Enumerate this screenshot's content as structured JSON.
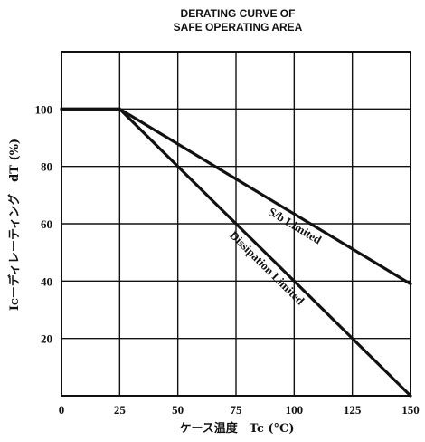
{
  "chart_data": {
    "type": "line",
    "title_lines": [
      "DERATING CURVE OF",
      "SAFE OPERATING AREA"
    ],
    "xlabel": "ケース温度　Tc (°C)",
    "ylabel": "Icーディレーティング　dT (%)",
    "xlim": [
      0,
      150
    ],
    "ylim": [
      0,
      120
    ],
    "x_ticks": [
      0,
      25,
      50,
      75,
      100,
      125,
      150
    ],
    "x_tick_labels": [
      "0",
      "25",
      "50",
      "75",
      "100",
      "125",
      "150"
    ],
    "y_ticks": [
      20,
      40,
      60,
      80,
      100
    ],
    "y_tick_labels": [
      "20",
      "40",
      "60",
      "80",
      "100"
    ],
    "grid": true,
    "series": [
      {
        "name": "S/b Limited",
        "x": [
          0,
          25,
          150
        ],
        "y": [
          100,
          100,
          39
        ]
      },
      {
        "name": "Dissipation Limited",
        "x": [
          0,
          25,
          150
        ],
        "y": [
          100,
          100,
          0
        ]
      }
    ]
  }
}
